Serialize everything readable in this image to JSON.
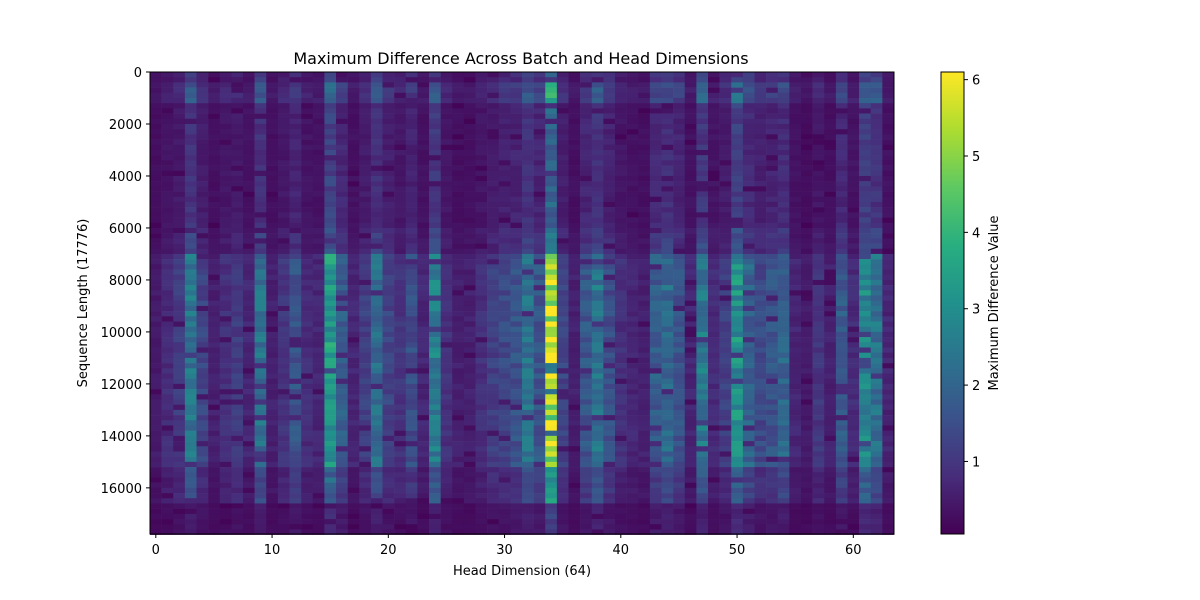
{
  "chart_data": {
    "type": "heatmap",
    "title": "Maximum Difference Across Batch and Head Dimensions",
    "xlabel": "Head Dimension (64)",
    "ylabel": "Sequence Length (17776)",
    "x_range": [
      -0.5,
      63.5
    ],
    "y_range": [
      -0.5,
      17775.5
    ],
    "y_inverted": true,
    "x_ticks": [
      0,
      10,
      20,
      30,
      40,
      50,
      60
    ],
    "y_ticks": [
      0,
      2000,
      4000,
      6000,
      8000,
      10000,
      12000,
      14000,
      16000
    ],
    "colormap": "viridis",
    "colorbar": {
      "label": "Maximum Difference Value",
      "range": [
        0.05,
        6.1
      ],
      "ticks": [
        1,
        2,
        3,
        4,
        5,
        6
      ]
    },
    "grid": false,
    "row_bands": [
      {
        "start": 0,
        "end": 300,
        "level": 0.45
      },
      {
        "start": 300,
        "end": 1100,
        "level": 0.7
      },
      {
        "start": 1100,
        "end": 6000,
        "level": 0.35
      },
      {
        "start": 6000,
        "end": 6900,
        "level": 0.5
      },
      {
        "start": 6900,
        "end": 15100,
        "level": 1.0
      },
      {
        "start": 15100,
        "end": 16500,
        "level": 0.6
      },
      {
        "start": 16500,
        "end": 17776,
        "level": 0.2
      }
    ],
    "column_peaks": [
      0.5,
      0.8,
      1.1,
      2.4,
      1.3,
      0.6,
      0.9,
      1.1,
      0.7,
      2.3,
      0.6,
      1.0,
      1.6,
      0.8,
      0.7,
      3.3,
      1.8,
      0.7,
      1.2,
      2.2,
      1.3,
      1.0,
      1.5,
      0.7,
      2.7,
      0.9,
      0.6,
      0.6,
      0.9,
      1.2,
      1.4,
      1.6,
      2.3,
      1.7,
      5.5,
      1.3,
      0.6,
      1.7,
      2.4,
      1.5,
      0.9,
      0.7,
      0.6,
      1.8,
      2.2,
      1.6,
      0.7,
      2.6,
      0.8,
      1.2,
      3.1,
      2.0,
      1.4,
      1.6,
      2.0,
      0.7,
      0.5,
      1.0,
      0.6,
      1.8,
      0.8,
      2.9,
      2.4,
      0.7
    ]
  }
}
